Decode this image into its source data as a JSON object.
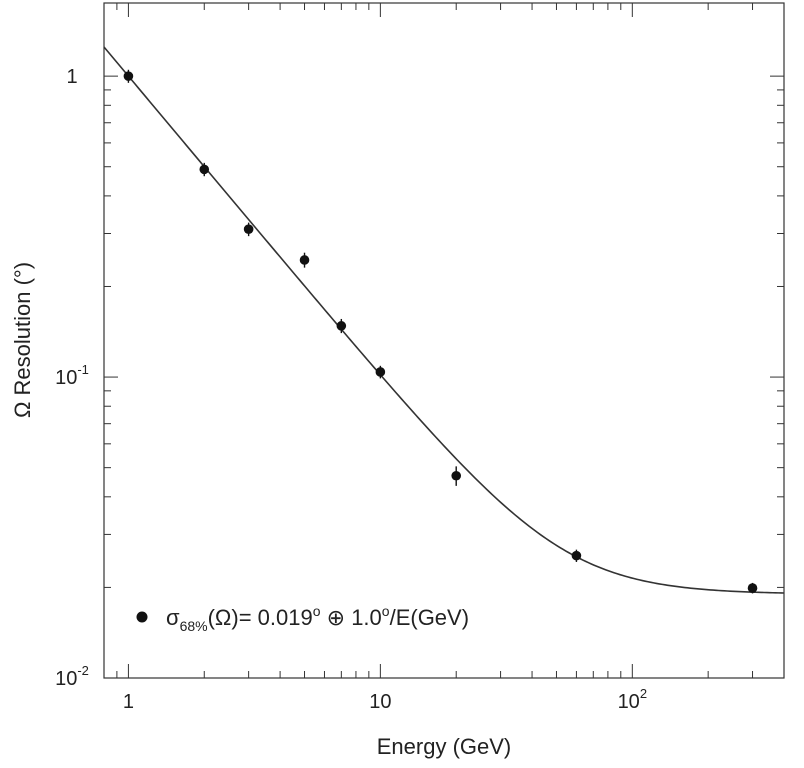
{
  "chart_data": {
    "type": "scatter",
    "xlabel": "Energy (GeV)",
    "ylabel": "Ω Resolution (°)",
    "x_scale": "log",
    "y_scale": "log",
    "xlim": [
      0.8,
      400
    ],
    "ylim": [
      0.01,
      1.75
    ],
    "x_ticks": [
      {
        "value": 1,
        "label": "1",
        "exp": ""
      },
      {
        "value": 10,
        "label": "10",
        "exp": ""
      },
      {
        "value": 100,
        "label": "10",
        "exp": "2"
      }
    ],
    "y_ticks": [
      {
        "value": 0.01,
        "label": "10",
        "exp": "-2"
      },
      {
        "value": 0.1,
        "label": "10",
        "exp": "-1"
      },
      {
        "value": 1,
        "label": "1",
        "exp": ""
      }
    ],
    "grid": false,
    "series": [
      {
        "points": [
          {
            "x": 1,
            "y": 1.0,
            "err": 0.05
          },
          {
            "x": 2,
            "y": 0.49,
            "err": 0.025
          },
          {
            "x": 3,
            "y": 0.31,
            "err": 0.016
          },
          {
            "x": 5,
            "y": 0.245,
            "err": 0.014
          },
          {
            "x": 7,
            "y": 0.148,
            "err": 0.008
          },
          {
            "x": 10,
            "y": 0.104,
            "err": 0.005
          },
          {
            "x": 20,
            "y": 0.047,
            "err": 0.0035
          },
          {
            "x": 60,
            "y": 0.0255,
            "err": 0.0012
          },
          {
            "x": 300,
            "y": 0.0199,
            "err": 0.0008
          }
        ]
      }
    ],
    "fit": {
      "constant": 0.019,
      "scale": 1.0
    }
  },
  "legend": {
    "position": "bottom-left",
    "sigma": "σ",
    "subscript": "68%",
    "text_a": "(Ω)= 0.019",
    "deg1": "o",
    "oplus": " ⊕ 1.0",
    "deg2": "o",
    "text_b": "/E(GeV)"
  }
}
